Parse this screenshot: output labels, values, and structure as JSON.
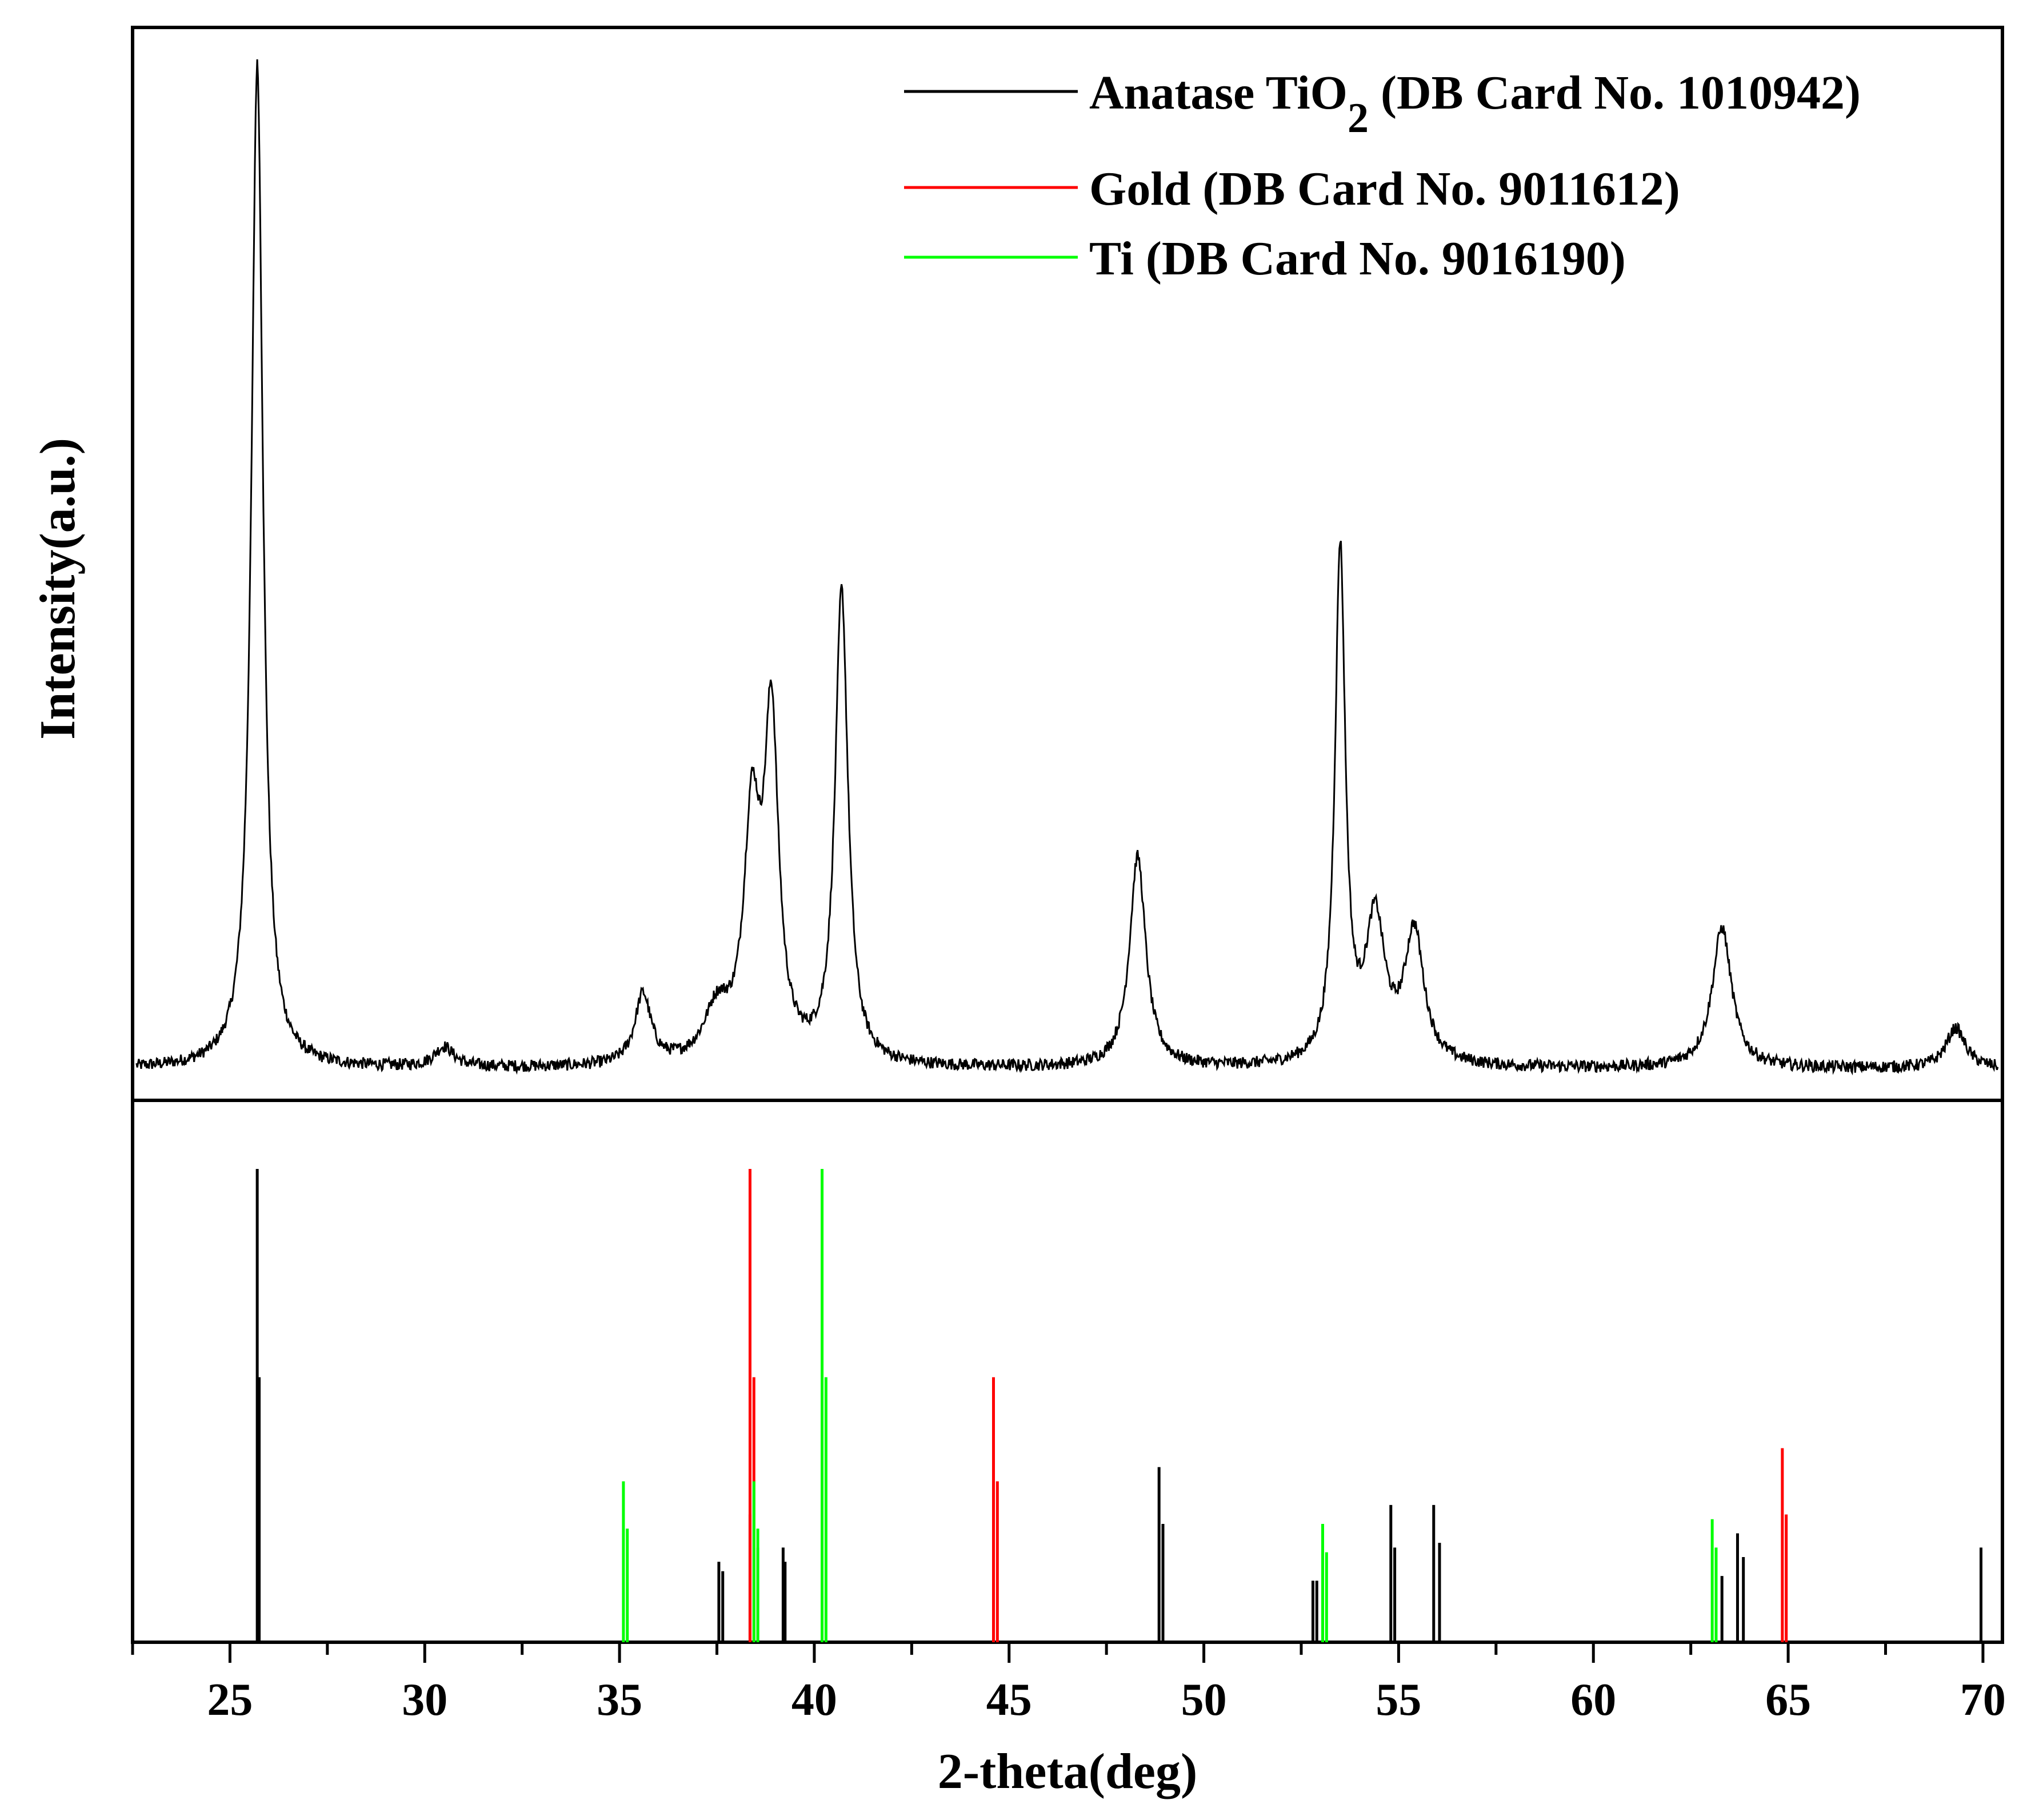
{
  "chart_data": {
    "type": "line",
    "xlabel": "2-theta(deg)",
    "ylabel": "Intensity(a.u.)",
    "xlim": [
      22.5,
      70.5
    ],
    "x_ticks": [
      "25",
      "30",
      "35",
      "40",
      "45",
      "50",
      "55",
      "60",
      "65",
      "70"
    ],
    "grid": false,
    "legend_position": "top-right",
    "legend": [
      {
        "text_main": "Anatase TiO",
        "text_sub": "2",
        "text_tail": " (DB Card No. 1010942)",
        "color": "#000000"
      },
      {
        "text_main": "Gold (DB Card No. 9011612)",
        "color": "#ff0000"
      },
      {
        "text_main": "Ti (DB Card No. 9016190)",
        "color": "#00ff00"
      }
    ],
    "pattern": {
      "name": "measured XRD pattern",
      "color": "#000000",
      "baseline": 0.02,
      "ylim": [
        0,
        1
      ],
      "peaks": [
        {
          "x": 25.7,
          "y": 1.0,
          "w": 0.18
        },
        {
          "x": 30.5,
          "y": 0.02,
          "w": 0.3
        },
        {
          "x": 35.6,
          "y": 0.07,
          "w": 0.25
        },
        {
          "x": 37.5,
          "y": 0.05,
          "w": 0.4
        },
        {
          "x": 38.4,
          "y": 0.23,
          "w": 0.25
        },
        {
          "x": 38.9,
          "y": 0.33,
          "w": 0.22
        },
        {
          "x": 40.7,
          "y": 0.47,
          "w": 0.2
        },
        {
          "x": 48.3,
          "y": 0.21,
          "w": 0.25
        },
        {
          "x": 53.5,
          "y": 0.51,
          "w": 0.16
        },
        {
          "x": 54.4,
          "y": 0.14,
          "w": 0.3
        },
        {
          "x": 55.4,
          "y": 0.13,
          "w": 0.3
        },
        {
          "x": 63.3,
          "y": 0.14,
          "w": 0.3
        },
        {
          "x": 69.3,
          "y": 0.04,
          "w": 0.3
        }
      ]
    },
    "reference_series": [
      {
        "name": "Anatase TiO2 (DB Card No. 1010942)",
        "color": "#000000",
        "x": [
          25.7,
          25.75,
          37.55,
          37.65,
          38.35,
          38.55,
          39.2,
          39.25,
          48.85,
          48.95,
          52.8,
          52.9,
          54.8,
          54.9,
          55.9,
          56.05,
          63.3,
          63.7,
          63.85,
          69.95
        ],
        "y": [
          1.0,
          0.56,
          0.17,
          0.15,
          0.27,
          0.2,
          0.2,
          0.17,
          0.37,
          0.25,
          0.13,
          0.13,
          0.29,
          0.2,
          0.29,
          0.21,
          0.14,
          0.23,
          0.18,
          0.2
        ]
      },
      {
        "name": "Gold (DB Card No. 9011612)",
        "color": "#ff0000",
        "x": [
          38.35,
          38.45,
          44.6,
          44.7,
          64.85,
          64.95
        ],
        "y": [
          1.0,
          0.56,
          0.56,
          0.34,
          0.41,
          0.27
        ]
      },
      {
        "name": "Ti (DB Card No. 9016190)",
        "color": "#00ff00",
        "x": [
          35.1,
          35.2,
          38.45,
          38.55,
          40.2,
          40.3,
          53.05,
          53.15,
          63.05,
          63.15
        ],
        "y": [
          0.34,
          0.24,
          0.34,
          0.24,
          1.0,
          0.56,
          0.25,
          0.19,
          0.26,
          0.2
        ]
      }
    ]
  }
}
